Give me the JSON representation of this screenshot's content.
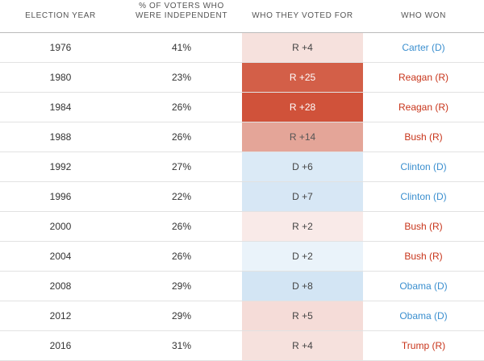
{
  "header": {
    "col_year": "ELECTION YEAR",
    "col_pct": "% OF VOTERS WHO\nWERE INDEPENDENT",
    "col_vote": "WHO THEY VOTED FOR",
    "col_won": "WHO WON"
  },
  "rows": [
    {
      "year": "1976",
      "pct": "41%",
      "vote": "R +4",
      "party": "R",
      "margin": 4,
      "winner": "Carter (D)",
      "winner_party": "D"
    },
    {
      "year": "1980",
      "pct": "23%",
      "vote": "R +25",
      "party": "R",
      "margin": 25,
      "winner": "Reagan (R)",
      "winner_party": "R"
    },
    {
      "year": "1984",
      "pct": "26%",
      "vote": "R +28",
      "party": "R",
      "margin": 28,
      "winner": "Reagan (R)",
      "winner_party": "R"
    },
    {
      "year": "1988",
      "pct": "26%",
      "vote": "R +14",
      "party": "R",
      "margin": 14,
      "winner": "Bush (R)",
      "winner_party": "R"
    },
    {
      "year": "1992",
      "pct": "27%",
      "vote": "D +6",
      "party": "D",
      "margin": 6,
      "winner": "Clinton (D)",
      "winner_party": "D"
    },
    {
      "year": "1996",
      "pct": "22%",
      "vote": "D +7",
      "party": "D",
      "margin": 7,
      "winner": "Clinton (D)",
      "winner_party": "D"
    },
    {
      "year": "2000",
      "pct": "26%",
      "vote": "R +2",
      "party": "R",
      "margin": 2,
      "winner": "Bush (R)",
      "winner_party": "R"
    },
    {
      "year": "2004",
      "pct": "26%",
      "vote": "D +2",
      "party": "D",
      "margin": 2,
      "winner": "Bush (R)",
      "winner_party": "R"
    },
    {
      "year": "2008",
      "pct": "29%",
      "vote": "D +8",
      "party": "D",
      "margin": 8,
      "winner": "Obama (D)",
      "winner_party": "D"
    },
    {
      "year": "2012",
      "pct": "29%",
      "vote": "R +5",
      "party": "R",
      "margin": 5,
      "winner": "Obama (D)",
      "winner_party": "D"
    },
    {
      "year": "2016",
      "pct": "31%",
      "vote": "R +4",
      "party": "R",
      "margin": 4,
      "winner": "Trump (R)",
      "winner_party": "R"
    }
  ],
  "colors": {
    "republican": "#d0523a",
    "democrat": "#3b8fcf",
    "rep_light": "#f7e3e0",
    "dem_light": "#dbe9f5"
  },
  "chart_data": {
    "type": "table",
    "columns": [
      "ELECTION YEAR",
      "% OF VOTERS WHO WERE INDEPENDENT",
      "WHO THEY VOTED FOR",
      "WHO WON"
    ],
    "rows": [
      [
        "1976",
        "41%",
        "R +4",
        "Carter (D)"
      ],
      [
        "1980",
        "23%",
        "R +25",
        "Reagan (R)"
      ],
      [
        "1984",
        "26%",
        "R +28",
        "Reagan (R)"
      ],
      [
        "1988",
        "26%",
        "R +14",
        "Bush (R)"
      ],
      [
        "1992",
        "27%",
        "D +6",
        "Clinton (D)"
      ],
      [
        "1996",
        "22%",
        "D +7",
        "Clinton (D)"
      ],
      [
        "2000",
        "26%",
        "R +2",
        "Bush (R)"
      ],
      [
        "2004",
        "26%",
        "D +2",
        "Bush (R)"
      ],
      [
        "2008",
        "29%",
        "D +8",
        "Obama (D)"
      ],
      [
        "2012",
        "29%",
        "R +5",
        "Obama (D)"
      ],
      [
        "2016",
        "31%",
        "R +4",
        "Trump (R)"
      ]
    ]
  }
}
